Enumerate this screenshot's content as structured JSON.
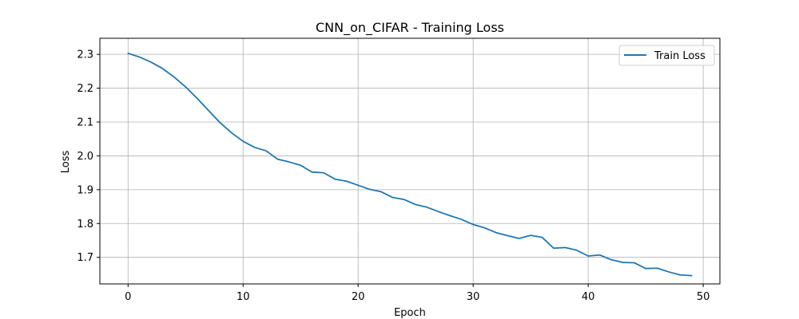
{
  "chart_data": {
    "type": "line",
    "title": "CNN_on_CIFAR - Training Loss",
    "xlabel": "Epoch",
    "ylabel": "Loss",
    "xlim": [
      -2.45,
      51.45
    ],
    "ylim": [
      1.6215,
      2.3475
    ],
    "xticks": [
      0,
      10,
      20,
      30,
      40,
      50
    ],
    "yticks": [
      1.7,
      1.8,
      1.9,
      2.0,
      2.1,
      2.2,
      2.3
    ],
    "xtick_labels": [
      "0",
      "10",
      "20",
      "30",
      "40",
      "50"
    ],
    "ytick_labels": [
      "1.7",
      "1.8",
      "1.9",
      "2.0",
      "2.1",
      "2.2",
      "2.3"
    ],
    "grid": true,
    "legend_position": "top-right",
    "series": [
      {
        "name": "Train Loss",
        "color": "#1f77b4",
        "x": [
          0,
          1,
          2,
          3,
          4,
          5,
          6,
          7,
          8,
          9,
          10,
          11,
          12,
          13,
          14,
          15,
          16,
          17,
          18,
          19,
          20,
          21,
          22,
          23,
          24,
          25,
          26,
          27,
          28,
          29,
          30,
          31,
          32,
          33,
          34,
          35,
          36,
          37,
          38,
          39,
          40,
          41,
          42,
          43,
          44,
          45,
          46,
          47,
          48,
          49
        ],
        "y": [
          2.303,
          2.292,
          2.277,
          2.258,
          2.233,
          2.204,
          2.17,
          2.134,
          2.098,
          2.068,
          2.043,
          2.025,
          2.015,
          1.99,
          1.982,
          1.972,
          1.952,
          1.95,
          1.931,
          1.925,
          1.913,
          1.901,
          1.894,
          1.877,
          1.871,
          1.856,
          1.848,
          1.835,
          1.823,
          1.812,
          1.797,
          1.787,
          1.773,
          1.764,
          1.756,
          1.765,
          1.759,
          1.727,
          1.729,
          1.721,
          1.704,
          1.707,
          1.693,
          1.685,
          1.684,
          1.667,
          1.668,
          1.657,
          1.648,
          1.646
        ]
      }
    ]
  }
}
